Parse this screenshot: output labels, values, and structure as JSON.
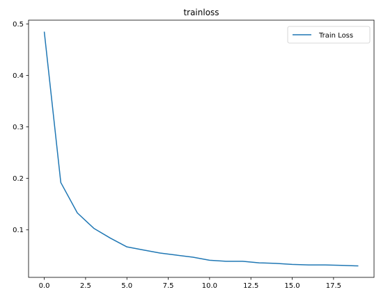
{
  "chart_data": {
    "type": "line",
    "title": "trainloss",
    "xlabel": "",
    "ylabel": "",
    "xlim": [
      -0.95,
      19.95
    ],
    "ylim": [
      0.0078,
      0.5073
    ],
    "xticks": [
      0.0,
      2.5,
      5.0,
      7.5,
      10.0,
      12.5,
      15.0,
      17.5
    ],
    "xtick_labels": [
      "0.0",
      "2.5",
      "5.0",
      "7.5",
      "10.0",
      "12.5",
      "15.0",
      "17.5"
    ],
    "yticks": [
      0.1,
      0.2,
      0.3,
      0.4,
      0.5
    ],
    "ytick_labels": [
      "0.1",
      "0.2",
      "0.3",
      "0.4",
      "0.5"
    ],
    "grid": false,
    "legend_position": "top-right",
    "series": [
      {
        "name": "Train Loss",
        "color": "#1f77b4",
        "x": [
          0,
          1,
          2,
          3,
          4,
          5,
          6,
          7,
          8,
          9,
          10,
          11,
          12,
          13,
          14,
          15,
          16,
          17,
          18,
          19
        ],
        "values": [
          0.485,
          0.192,
          0.133,
          0.103,
          0.084,
          0.067,
          0.061,
          0.055,
          0.051,
          0.047,
          0.041,
          0.039,
          0.039,
          0.036,
          0.035,
          0.033,
          0.032,
          0.032,
          0.031,
          0.03
        ]
      }
    ]
  }
}
